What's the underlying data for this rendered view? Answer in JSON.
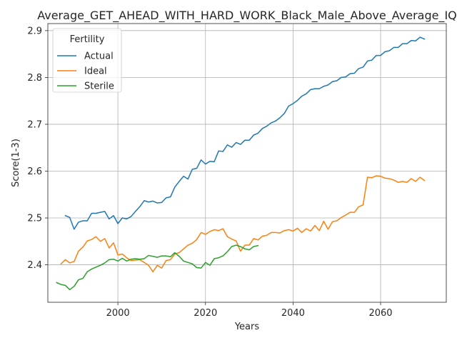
{
  "chart_data": {
    "type": "line",
    "title": "Average_GET_AHEAD_WITH_HARD_WORK_Black_Male_Above_Average_IQ",
    "xlabel": "Years",
    "ylabel": "Score(1-3)",
    "xlim": [
      1984,
      2075
    ],
    "ylim": [
      2.32,
      2.915
    ],
    "xticks": [
      2000,
      2020,
      2040,
      2060
    ],
    "yticks": [
      2.4,
      2.5,
      2.6,
      2.7,
      2.8,
      2.9
    ],
    "grid": true,
    "legend": {
      "title": "Fertility",
      "placement": "top-left"
    },
    "colors": {
      "Actual": "#1f77b4",
      "Ideal": "#ff7f0e",
      "Sterile": "#2ca02c"
    },
    "series": [
      {
        "name": "Actual",
        "x": [
          1988,
          1989,
          1990,
          1991,
          1992,
          1993,
          1994,
          1995,
          1996,
          1997,
          1998,
          1999,
          2000,
          2001,
          2002,
          2003,
          2004,
          2005,
          2006,
          2007,
          2008,
          2009,
          2010,
          2011,
          2012,
          2013,
          2014,
          2015,
          2016,
          2017,
          2018,
          2019,
          2020,
          2021,
          2022,
          2023,
          2024,
          2025,
          2026,
          2027,
          2028,
          2029,
          2030,
          2031,
          2032,
          2033,
          2034,
          2035,
          2036,
          2037,
          2038,
          2039,
          2040,
          2041,
          2042,
          2043,
          2044,
          2045,
          2046,
          2047,
          2048,
          2049,
          2050,
          2051,
          2052,
          2053,
          2054,
          2055,
          2056,
          2057,
          2058,
          2059,
          2060,
          2061,
          2062,
          2063,
          2064,
          2065,
          2066,
          2067,
          2068,
          2069,
          2070
        ],
        "values": [
          2.505,
          2.501,
          2.476,
          2.491,
          2.494,
          2.494,
          2.51,
          2.51,
          2.512,
          2.514,
          2.498,
          2.505,
          2.488,
          2.5,
          2.498,
          2.503,
          2.514,
          2.524,
          2.537,
          2.534,
          2.536,
          2.532,
          2.533,
          2.543,
          2.545,
          2.566,
          2.578,
          2.589,
          2.583,
          2.604,
          2.606,
          2.624,
          2.615,
          2.621,
          2.62,
          2.643,
          2.642,
          2.656,
          2.651,
          2.661,
          2.657,
          2.666,
          2.666,
          2.677,
          2.681,
          2.691,
          2.696,
          2.703,
          2.707,
          2.714,
          2.723,
          2.739,
          2.744,
          2.751,
          2.76,
          2.765,
          2.774,
          2.776,
          2.776,
          2.781,
          2.784,
          2.791,
          2.793,
          2.8,
          2.801,
          2.808,
          2.809,
          2.819,
          2.822,
          2.835,
          2.837,
          2.847,
          2.847,
          2.855,
          2.857,
          2.864,
          2.864,
          2.872,
          2.872,
          2.879,
          2.878,
          2.886,
          2.882
        ]
      },
      {
        "name": "Ideal",
        "x": [
          1987,
          1988,
          1989,
          1990,
          1991,
          1992,
          1993,
          1994,
          1995,
          1996,
          1997,
          1998,
          1999,
          2000,
          2001,
          2002,
          2003,
          2004,
          2005,
          2006,
          2007,
          2008,
          2009,
          2010,
          2011,
          2012,
          2013,
          2014,
          2015,
          2016,
          2017,
          2018,
          2019,
          2020,
          2021,
          2022,
          2023,
          2024,
          2025,
          2026,
          2027,
          2028,
          2029,
          2030,
          2031,
          2032,
          2033,
          2034,
          2035,
          2036,
          2037,
          2038,
          2039,
          2040,
          2041,
          2042,
          2043,
          2044,
          2045,
          2046,
          2047,
          2048,
          2049,
          2050,
          2051,
          2052,
          2053,
          2054,
          2055,
          2056,
          2057,
          2058,
          2059,
          2060,
          2061,
          2062,
          2063,
          2064,
          2065,
          2066,
          2067,
          2068,
          2069,
          2070
        ],
        "values": [
          2.402,
          2.411,
          2.404,
          2.407,
          2.429,
          2.438,
          2.451,
          2.454,
          2.46,
          2.45,
          2.456,
          2.436,
          2.447,
          2.421,
          2.423,
          2.415,
          2.409,
          2.41,
          2.411,
          2.405,
          2.399,
          2.385,
          2.399,
          2.393,
          2.409,
          2.411,
          2.423,
          2.426,
          2.434,
          2.442,
          2.446,
          2.454,
          2.469,
          2.465,
          2.471,
          2.475,
          2.473,
          2.477,
          2.46,
          2.455,
          2.451,
          2.429,
          2.442,
          2.442,
          2.456,
          2.453,
          2.461,
          2.463,
          2.469,
          2.469,
          2.468,
          2.473,
          2.475,
          2.472,
          2.478,
          2.469,
          2.477,
          2.472,
          2.484,
          2.473,
          2.493,
          2.476,
          2.492,
          2.494,
          2.501,
          2.506,
          2.512,
          2.512,
          2.524,
          2.528,
          2.587,
          2.586,
          2.59,
          2.589,
          2.585,
          2.584,
          2.581,
          2.576,
          2.578,
          2.576,
          2.584,
          2.578,
          2.587,
          2.58
        ]
      },
      {
        "name": "Sterile",
        "x": [
          1986,
          1987,
          1988,
          1989,
          1990,
          1991,
          1992,
          1993,
          1994,
          1995,
          1996,
          1997,
          1998,
          1999,
          2000,
          2001,
          2002,
          2003,
          2004,
          2005,
          2006,
          2007,
          2008,
          2009,
          2010,
          2011,
          2012,
          2013,
          2014,
          2015,
          2016,
          2017,
          2018,
          2019,
          2020,
          2021,
          2022,
          2023,
          2024,
          2025,
          2026,
          2027,
          2028,
          2029,
          2030,
          2031,
          2032
        ],
        "values": [
          2.362,
          2.358,
          2.356,
          2.347,
          2.354,
          2.368,
          2.371,
          2.385,
          2.391,
          2.395,
          2.399,
          2.404,
          2.411,
          2.412,
          2.408,
          2.414,
          2.408,
          2.412,
          2.413,
          2.412,
          2.413,
          2.42,
          2.418,
          2.416,
          2.419,
          2.419,
          2.417,
          2.426,
          2.418,
          2.408,
          2.405,
          2.402,
          2.394,
          2.393,
          2.405,
          2.399,
          2.413,
          2.415,
          2.419,
          2.428,
          2.439,
          2.442,
          2.439,
          2.434,
          2.432,
          2.439,
          2.441
        ]
      }
    ]
  }
}
